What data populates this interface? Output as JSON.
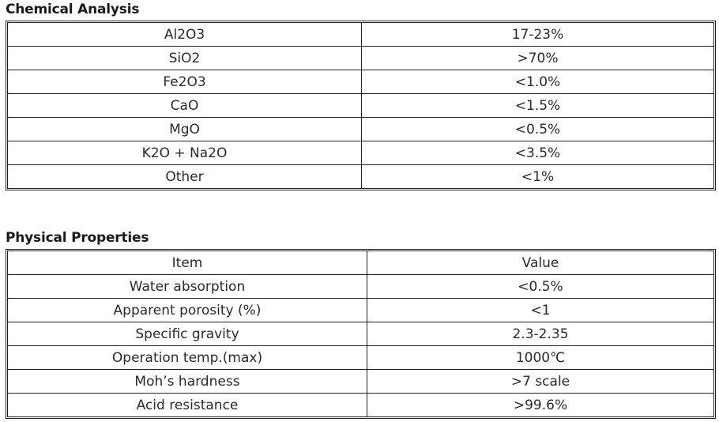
{
  "chemical_analysis": {
    "title": "Chemical Analysis",
    "rows": [
      {
        "component": "Al2O3",
        "value": "17-23%"
      },
      {
        "component": "SiO2",
        "value": ">70%"
      },
      {
        "component": "Fe2O3",
        "value": "<1.0%"
      },
      {
        "component": "CaO",
        "value": "<1.5%"
      },
      {
        "component": "MgO",
        "value": "<0.5%"
      },
      {
        "component": "K2O + Na2O",
        "value": "<3.5%"
      },
      {
        "component": "Other",
        "value": "<1%"
      }
    ]
  },
  "physical_properties": {
    "title": "Physical Properties",
    "header": {
      "item": "Item",
      "value": "Value"
    },
    "rows": [
      {
        "item": "Water absorption",
        "value": "<0.5%"
      },
      {
        "item": "Apparent porosity (%)",
        "value": "<1"
      },
      {
        "item": "Specific gravity",
        "value": "2.3-2.35"
      },
      {
        "item": "Operation temp.(max)",
        "value": "1000℃"
      },
      {
        "item": "Moh’s hardness",
        "value": ">7 scale"
      },
      {
        "item": "Acid resistance",
        "value": ">99.6%"
      }
    ]
  }
}
